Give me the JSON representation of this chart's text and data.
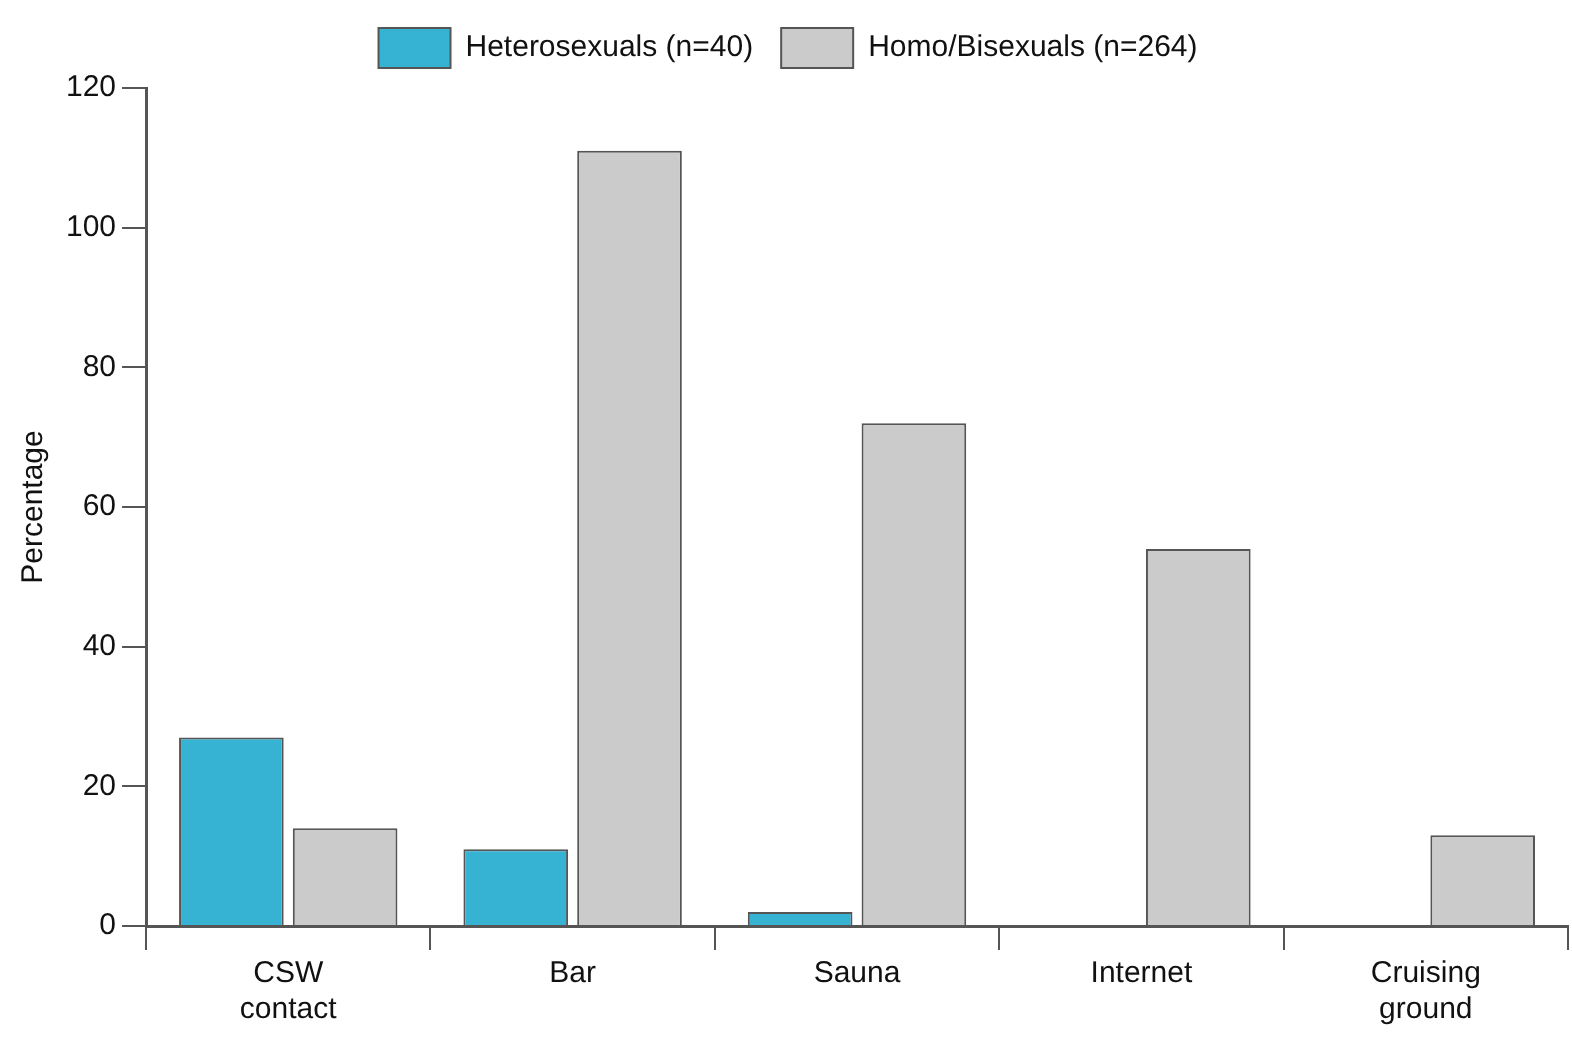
{
  "chart_data": {
    "type": "bar",
    "ylabel": "Percentage",
    "categories": [
      "CSW\ncontact",
      "Bar",
      "Sauna",
      "Internet",
      "Cruising\nground"
    ],
    "series": [
      {
        "name": "Heterosexuals (n=40)",
        "color": "#36b2d2",
        "values": [
          27,
          11,
          2,
          0,
          0
        ]
      },
      {
        "name": "Homo/Bisexuals (n=264)",
        "color": "#cbcbcb",
        "values": [
          14,
          111,
          72,
          54,
          13
        ]
      }
    ],
    "ylim": [
      0,
      120
    ],
    "yticks": [
      0,
      20,
      40,
      60,
      80,
      100,
      120
    ],
    "grid": false,
    "legend": "top"
  }
}
